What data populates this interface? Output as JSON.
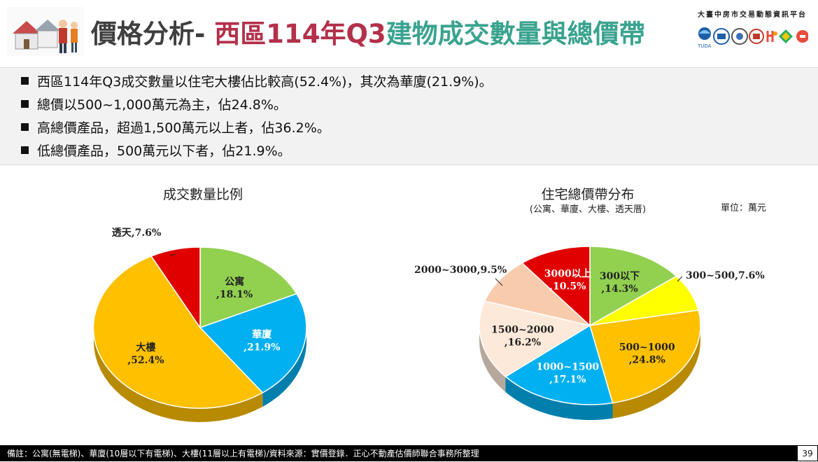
{
  "header": {
    "title_prefix": "價格分析- ",
    "title_region": "西區114年Q3",
    "title_subject": "建物成交數量與總價帶",
    "platform_name": "大臺中房市交易動態資訊平台",
    "logo_caption": "TUDA"
  },
  "bullets": [
    "西區114年Q3成交數量以住宅大樓佔比較高(52.4%)，其次為華廈(21.9%)。",
    "總價以500~1,000萬元為主，佔24.8%。",
    "高總價產品，超過1,500萬元以上者，佔36.2%。",
    "低總價產品，500萬元以下者，佔21.9%。"
  ],
  "unit_label": "單位：萬元",
  "footer": {
    "note": "備註：公寓(無電梯)、華廈(10層以下有電梯)、大樓(11層以上有電梯)/資料來源：實價登錄．正心不動產估價師聯合事務所整理",
    "page": "39"
  },
  "chart_data": [
    {
      "type": "pie",
      "title": "成交數量比例",
      "subtitle": "",
      "slices": [
        {
          "label": "公寓",
          "value": 18.1,
          "text": ",18.1%",
          "color": "#92d050"
        },
        {
          "label": "華廈",
          "value": 21.9,
          "text": ",21.9%",
          "color": "#00b0f0"
        },
        {
          "label": "大樓",
          "value": 52.4,
          "text": ",52.4%",
          "color": "#ffc000"
        },
        {
          "label": "透天",
          "value": 7.6,
          "text": ",7.6%",
          "color": "#e00000"
        }
      ]
    },
    {
      "type": "pie",
      "title": "住宅總價帶分布",
      "subtitle": "(公寓、華廈、大樓、透天厝)",
      "slices": [
        {
          "label": "300以下",
          "value": 14.3,
          "text": ",14.3%",
          "color": "#92d050"
        },
        {
          "label": "300~500",
          "value": 7.6,
          "text": ",7.6%",
          "color": "#ffff00"
        },
        {
          "label": "500~1000",
          "value": 24.8,
          "text": ",24.8%",
          "color": "#ffc000"
        },
        {
          "label": "1000~1500",
          "value": 17.1,
          "text": ",17.1%",
          "color": "#00b0f0"
        },
        {
          "label": "1500~2000",
          "value": 16.2,
          "text": ",16.2%",
          "color": "#fde9d9"
        },
        {
          "label": "2000~3000",
          "value": 9.5,
          "text": ",9.5%",
          "color": "#f8cbad"
        },
        {
          "label": "3000以上",
          "value": 10.5,
          "text": ",10.5%",
          "color": "#e00000"
        }
      ]
    }
  ]
}
